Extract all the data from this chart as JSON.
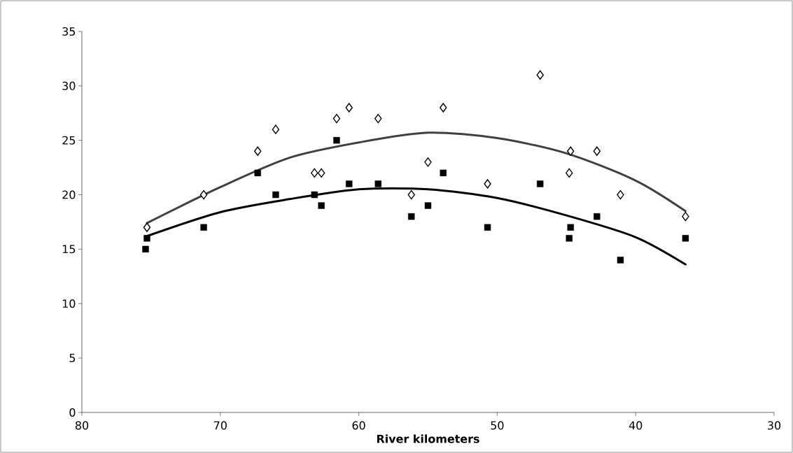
{
  "chart_data": {
    "type": "scatter",
    "xlabel": "River kilometers",
    "xlim": [
      80,
      30
    ],
    "xticks": [
      80,
      70,
      60,
      50,
      40,
      30
    ],
    "ylim": [
      0,
      35
    ],
    "yticks": [
      0,
      5,
      10,
      15,
      20,
      25,
      30,
      35
    ],
    "grid": false,
    "series": [
      {
        "marker": "diamond",
        "color": "#000000",
        "x": [
          75.3,
          71.2,
          67.3,
          66.0,
          63.2,
          62.7,
          61.6,
          60.7,
          58.6,
          56.2,
          55.0,
          53.9,
          50.7,
          46.9,
          44.7,
          44.8,
          42.8,
          41.1,
          36.4
        ],
        "values": [
          17,
          20,
          24,
          26,
          22,
          22,
          27,
          28,
          27,
          20,
          23,
          28,
          21,
          31,
          24,
          22,
          24,
          20,
          18
        ]
      },
      {
        "marker": "square",
        "color": "#000000",
        "x": [
          75.4,
          75.3,
          71.2,
          67.3,
          66.0,
          63.2,
          62.7,
          61.6,
          60.7,
          58.6,
          56.2,
          55.0,
          53.9,
          50.7,
          46.9,
          44.7,
          44.8,
          42.8,
          41.1,
          36.4
        ],
        "values": [
          15,
          16,
          17,
          22,
          20,
          20,
          19,
          25,
          21,
          21,
          18,
          19,
          22,
          17,
          21,
          17,
          16,
          18,
          14,
          16
        ]
      },
      {
        "type": "line",
        "marker": "none",
        "color": "#404040",
        "x": [
          75.3,
          70,
          65,
          60,
          55,
          50,
          45,
          40,
          36.4
        ],
        "values": [
          17.4,
          20.7,
          23.4,
          24.8,
          25.7,
          25.2,
          23.8,
          21.3,
          18.5
        ]
      },
      {
        "type": "line",
        "marker": "none",
        "color": "#000000",
        "x": [
          75.3,
          70,
          65,
          60,
          55,
          50,
          45,
          40,
          36.4
        ],
        "values": [
          16.2,
          18.4,
          19.6,
          20.5,
          20.5,
          19.7,
          18.1,
          16.1,
          13.6
        ]
      }
    ]
  }
}
